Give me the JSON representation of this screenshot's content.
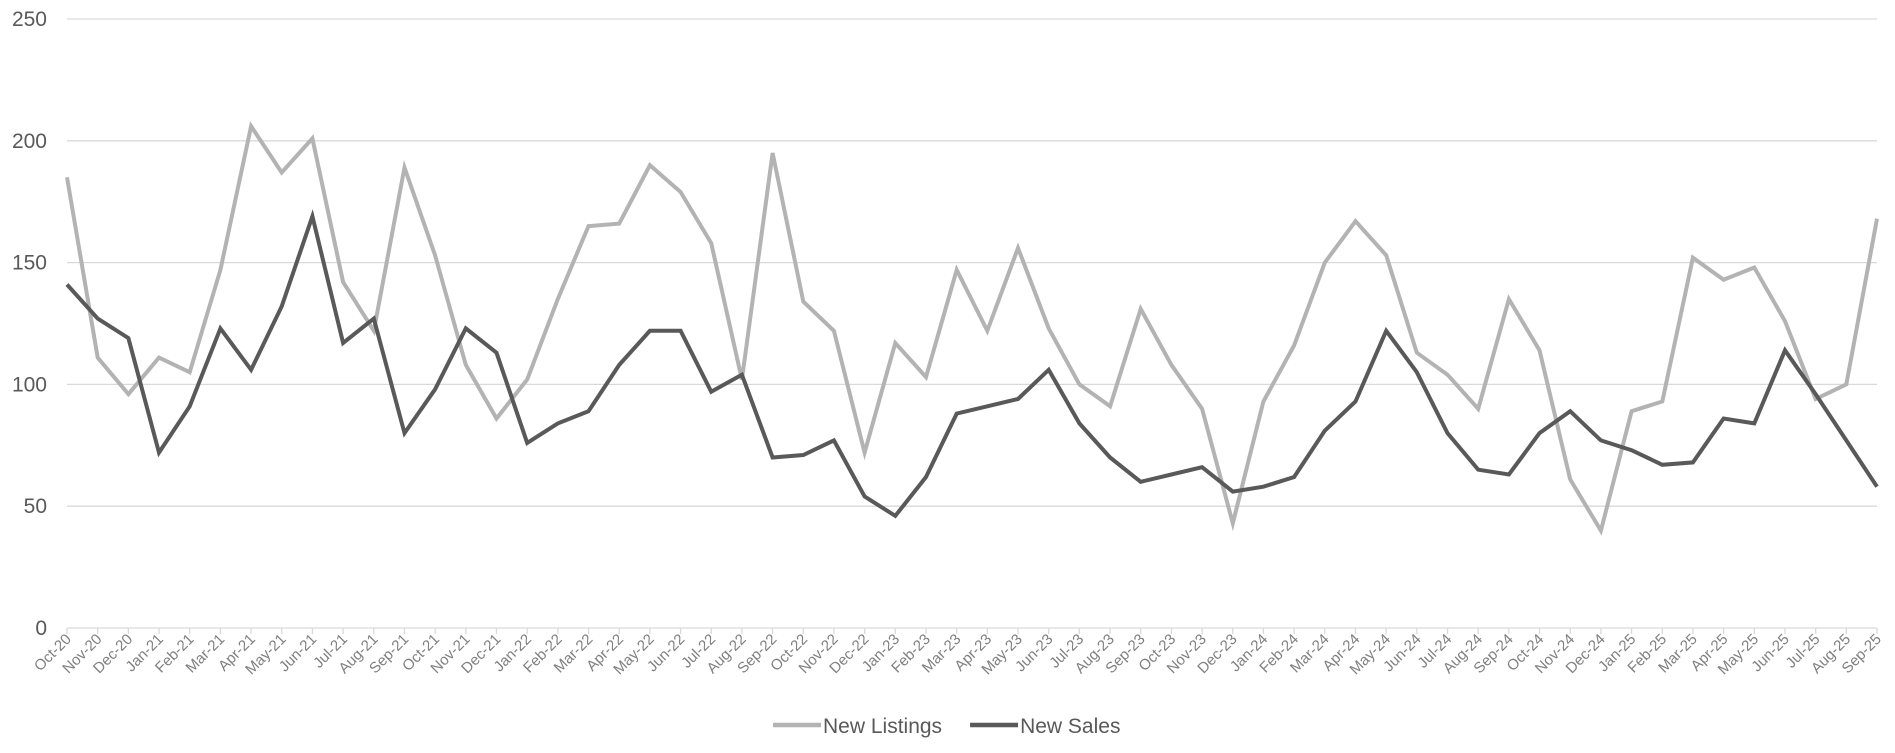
{
  "chart_data": {
    "type": "line",
    "title": "",
    "xlabel": "",
    "ylabel": "",
    "ylim": [
      0,
      250
    ],
    "yticks": [
      0,
      50,
      100,
      150,
      200,
      250
    ],
    "grid": "horizontal",
    "legend_position": "bottom",
    "categories": [
      "Oct-20",
      "Nov-20",
      "Dec-20",
      "Jan-21",
      "Feb-21",
      "Mar-21",
      "Apr-21",
      "May-21",
      "Jun-21",
      "Jul-21",
      "Aug-21",
      "Sep-21",
      "Oct-21",
      "Nov-21",
      "Dec-21",
      "Jan-22",
      "Feb-22",
      "Mar-22",
      "Apr-22",
      "May-22",
      "Jun-22",
      "Jul-22",
      "Aug-22",
      "Sep-22",
      "Oct-22",
      "Nov-22",
      "Dec-22",
      "Jan-23",
      "Feb-23",
      "Mar-23",
      "Apr-23",
      "May-23",
      "Jun-23",
      "Jul-23",
      "Aug-23",
      "Sep-23",
      "Oct-23",
      "Nov-23",
      "Dec-23",
      "Jan-24",
      "Feb-24",
      "Mar-24",
      "Apr-24",
      "May-24",
      "Jun-24",
      "Jul-24",
      "Aug-24",
      "Sep-24",
      "Oct-24",
      "Nov-24",
      "Dec-24",
      "Jan-25",
      "Feb-25",
      "Mar-25",
      "Apr-25",
      "May-25",
      "Jun-25",
      "Jul-25",
      "Aug-25",
      "Sep-25"
    ],
    "series": [
      {
        "name": "New Listings",
        "color": "#b3b3b3",
        "values": [
          185,
          111,
          96,
          111,
          105,
          147,
          206,
          187,
          201,
          142,
          122,
          189,
          153,
          108,
          86,
          102,
          135,
          165,
          166,
          190,
          179,
          158,
          102,
          195,
          134,
          122,
          72,
          117,
          103,
          147,
          122,
          156,
          123,
          100,
          91,
          131,
          108,
          90,
          43,
          93,
          116,
          150,
          167,
          153,
          113,
          104,
          90,
          135,
          114,
          61,
          40,
          89,
          93,
          152,
          143,
          148,
          126,
          94,
          100,
          168
        ]
      },
      {
        "name": "New Sales",
        "color": "#595959",
        "values": [
          141,
          127,
          119,
          72,
          91,
          123,
          106,
          132,
          169,
          117,
          127,
          80,
          98,
          123,
          113,
          76,
          84,
          89,
          108,
          122,
          122,
          97,
          104,
          70,
          71,
          77,
          54,
          46,
          62,
          88,
          91,
          94,
          106,
          84,
          70,
          60,
          63,
          66,
          56,
          58,
          62,
          81,
          93,
          122,
          105,
          80,
          65,
          63,
          80,
          89,
          77,
          73,
          67,
          68,
          86,
          84,
          114,
          96,
          77,
          58
        ]
      }
    ]
  }
}
